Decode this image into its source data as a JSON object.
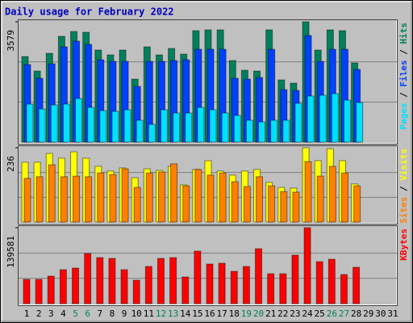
{
  "chart_data": {
    "title": "Daily usage for February 2022",
    "categories": [
      "1",
      "2",
      "3",
      "4",
      "5",
      "6",
      "7",
      "8",
      "9",
      "10",
      "11",
      "12",
      "13",
      "14",
      "15",
      "16",
      "17",
      "18",
      "19",
      "20",
      "21",
      "22",
      "23",
      "24",
      "25",
      "26",
      "27",
      "28",
      "29",
      "30",
      "31"
    ],
    "category_colors": [
      "#000000",
      "#000000",
      "#000000",
      "#000000",
      "#00805c",
      "#00805c",
      "#000000",
      "#000000",
      "#000000",
      "#000000",
      "#000000",
      "#00805c",
      "#00805c",
      "#000000",
      "#000000",
      "#000000",
      "#000000",
      "#000000",
      "#00805c",
      "#00805c",
      "#000000",
      "#000000",
      "#000000",
      "#000000",
      "#000000",
      "#00805c",
      "#00805c",
      "#000000",
      "#000000",
      "#000000",
      "#000000"
    ],
    "legend_separator": " / ",
    "panels": [
      {
        "type": "bar",
        "ylim": [
          0,
          3579
        ],
        "yticks": [
          3579
        ],
        "series": [
          {
            "name": "Hits",
            "color": "#00805c",
            "values": [
              2546,
              2114,
              2642,
              3147,
              3291,
              3267,
              2738,
              2594,
              2738,
              1874,
              2834,
              2594,
              2786,
              2618,
              3315,
              3339,
              3339,
              2426,
              2138,
              2114,
              3339,
              1850,
              1753,
              3579,
              2738,
              3339,
              3315,
              2354
            ]
          },
          {
            "name": "Files",
            "color": "#0040ff",
            "values": [
              2306,
              1898,
              2330,
              2834,
              3003,
              2906,
              2450,
              2402,
              2402,
              1657,
              2402,
              2402,
              2426,
              2450,
              2762,
              2762,
              2762,
              1898,
              1874,
              1922,
              2762,
              1561,
              1537,
              3171,
              2402,
              2762,
              2762,
              2162
            ]
          },
          {
            "name": "Pages",
            "color": "#00e0ff",
            "values": [
              1129,
              985,
              1105,
              1129,
              1297,
              1033,
              937,
              913,
              961,
              649,
              528,
              961,
              865,
              865,
              1033,
              961,
              865,
              793,
              649,
              600,
              649,
              649,
              1153,
              1369,
              1393,
              1441,
              1249,
              1177
            ]
          }
        ]
      },
      {
        "type": "bar",
        "ylim": [
          0,
          236
        ],
        "yticks": [
          236
        ],
        "series": [
          {
            "name": "Visits",
            "color": "#ffff00",
            "values": [
              190,
              190,
              218,
              203,
              223,
              203,
              177,
              162,
              172,
              141,
              169,
              164,
              177,
              118,
              167,
              195,
              162,
              149,
              162,
              167,
              126,
              110,
              108,
              236,
              195,
              233,
              195,
              121
            ]
          },
          {
            "name": "Sites",
            "color": "#ff8000",
            "values": [
              139,
              144,
              182,
              144,
              146,
              144,
              156,
              151,
              169,
              110,
              156,
              159,
              185,
              115,
              167,
              149,
              156,
              128,
              113,
              144,
              115,
              97,
              95,
              192,
              146,
              177,
              156,
              115
            ]
          }
        ]
      },
      {
        "type": "bar",
        "ylim": [
          0,
          139581
        ],
        "yticks": [
          139581
        ],
        "series": [
          {
            "name": "KBytes",
            "color": "#ff0000",
            "values": [
              44550,
              44550,
              50490,
              62370,
              65340,
              92070,
              84645,
              83160,
              62370,
              43065,
              68310,
              83160,
              84645,
              49005,
              96525,
              72765,
              74250,
              59400,
              68310,
              100980,
              54945,
              54945,
              89100,
              139581,
              77220,
              81675,
              53460,
              66825
            ]
          }
        ]
      }
    ]
  }
}
